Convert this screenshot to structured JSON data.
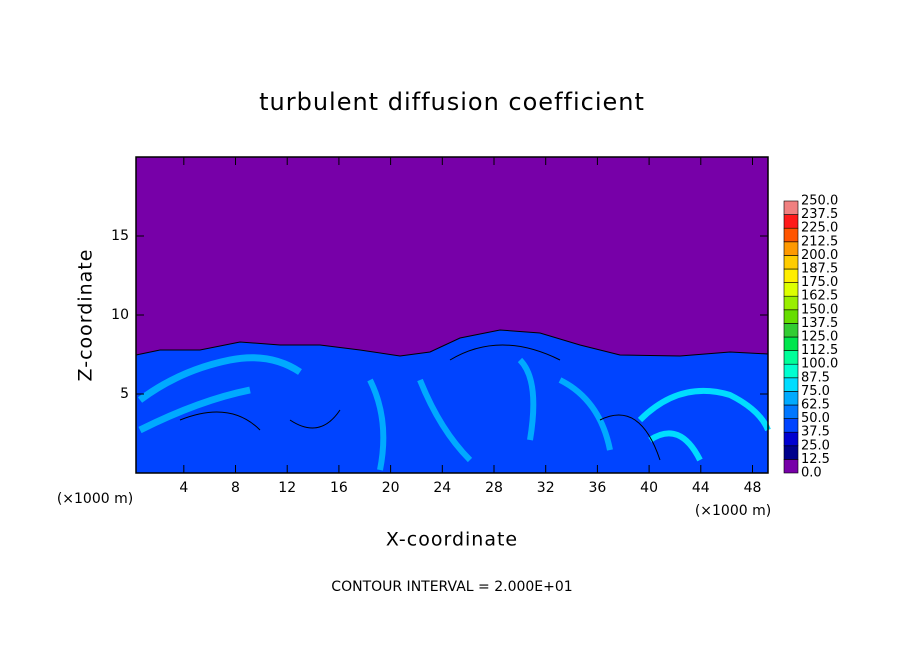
{
  "chart_data": {
    "type": "contour",
    "title": "turbulent diffusion coefficient",
    "xlabel": "X-coordinate",
    "ylabel": "Z-coordinate",
    "annotations": [
      "(×1000 m)",
      "(×1000 m)",
      "CONTOUR INTERVAL = 2.000E+01"
    ],
    "xlim": [
      0.3,
      49.2
    ],
    "ylim": [
      0,
      20
    ],
    "xticks": [
      4,
      8,
      12,
      16,
      20,
      24,
      28,
      32,
      36,
      40,
      44,
      48
    ],
    "yticks": [
      5,
      10,
      15
    ],
    "colorbar": {
      "levels": [
        {
          "value": 0,
          "label": "0.0"
        },
        {
          "value": 12.5,
          "label": "12.5"
        },
        {
          "value": 25,
          "label": "25.0"
        },
        {
          "value": 37.5,
          "label": "37.5"
        },
        {
          "value": 50,
          "label": "50.0"
        },
        {
          "value": 62.5,
          "label": "62.5"
        },
        {
          "value": 75,
          "label": "75.0"
        },
        {
          "value": 87.5,
          "label": "87.5"
        },
        {
          "value": 100,
          "label": "100.0"
        },
        {
          "value": 112.5,
          "label": "112.5"
        },
        {
          "value": 125,
          "label": "125.0"
        },
        {
          "value": 137.5,
          "label": "137.5"
        },
        {
          "value": 150,
          "label": "150.0"
        },
        {
          "value": 162.5,
          "label": "162.5"
        },
        {
          "value": 175,
          "label": "175.0"
        },
        {
          "value": 187.5,
          "label": "187.5"
        },
        {
          "value": 200,
          "label": "200.0"
        },
        {
          "value": 212.5,
          "label": "212.5"
        },
        {
          "value": 225,
          "label": "225.0"
        },
        {
          "value": 237.5,
          "label": "237.5"
        },
        {
          "value": 250,
          "label": "250.0"
        }
      ],
      "colors": [
        "#7700a8",
        "#00008c",
        "#0000d0",
        "#0044ff",
        "#0077ff",
        "#00aaff",
        "#00ddff",
        "#00ffd0",
        "#00ff99",
        "#00e64d",
        "#33cc33",
        "#66dd00",
        "#99ee00",
        "#ddff00",
        "#ffee00",
        "#ffcc00",
        "#ff9900",
        "#ff5500",
        "#ff1a1a",
        "#f08080"
      ]
    }
  }
}
